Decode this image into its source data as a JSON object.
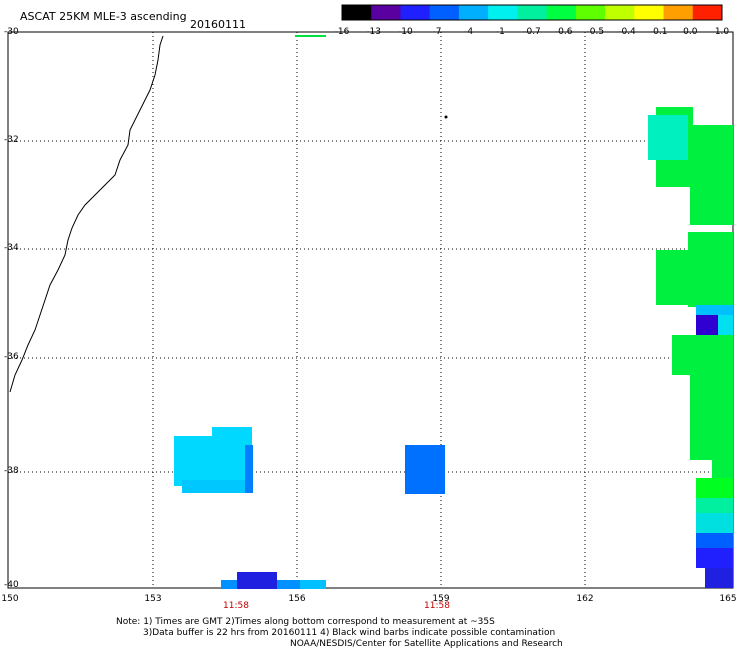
{
  "title": "ASCAT 25KM MLE-3 ascending",
  "date": "20160111",
  "colorbar": {
    "labels": [
      "-16",
      "-13",
      "-10",
      "-7",
      "-4",
      "-1",
      "-0.7",
      "-0.6",
      "-0.5",
      "-0.4",
      "-0.1",
      "0.0",
      "1.0"
    ],
    "colors": [
      "#000000",
      "#5a00a0",
      "#2020ff",
      "#0060ff",
      "#00b0ff",
      "#00f0f0",
      "#00f0a0",
      "#00ff40",
      "#60ff00",
      "#c0ff00",
      "#ffff00",
      "#ffa000",
      "#ff2000"
    ]
  },
  "axes": {
    "lat_labels": [
      "-30",
      "-32",
      "-34",
      "-36",
      "-38",
      "-40"
    ],
    "lon_labels": [
      "150",
      "153",
      "156",
      "159",
      "162",
      "165"
    ]
  },
  "times": [
    "11:58",
    "11:58"
  ],
  "notes": [
    "Note: 1) Times are GMT 2)Times along bottom correspond to measurement at ~35S",
    "3)Data buffer is 22 hrs from 20160111 4) Black wind barbs indicate possible contamination",
    "NOAA/NESDIS/Center for Satellite Applications and Research"
  ]
}
